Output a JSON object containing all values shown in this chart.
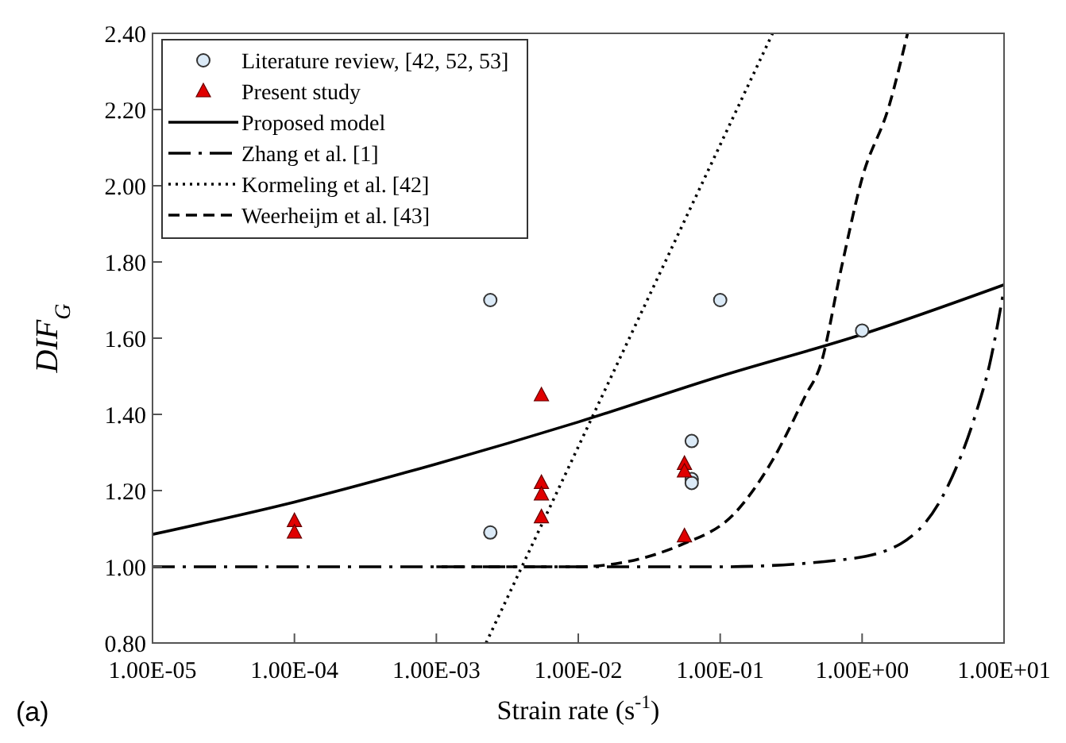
{
  "chart_data": {
    "type": "line",
    "xlabel": "Strain rate (s$^{-1}$)",
    "ylabel": "DIF$_{G}$",
    "annotations": [
      "(a)"
    ],
    "log": "x",
    "xlim": [
      1e-05,
      10
    ],
    "xticks": [
      {
        "value": 1e-05,
        "label": "1.00E-05"
      },
      {
        "value": 0.0001,
        "label": "1.00E-04"
      },
      {
        "value": 0.001,
        "label": "1.00E-03"
      },
      {
        "value": 0.01,
        "label": "1.00E-02"
      },
      {
        "value": 0.1,
        "label": "1.00E-01"
      },
      {
        "value": 1,
        "label": "1.00E+00"
      },
      {
        "value": 10,
        "label": "1.00E+01"
      }
    ],
    "ylim": [
      0.8,
      2.4
    ],
    "yticks": [
      {
        "value": 0.8,
        "label": "0.80"
      },
      {
        "value": 1.0,
        "label": "1.00"
      },
      {
        "value": 1.2,
        "label": "1.20"
      },
      {
        "value": 1.4,
        "label": "1.40"
      },
      {
        "value": 1.6,
        "label": "1.60"
      },
      {
        "value": 1.8,
        "label": "1.80"
      },
      {
        "value": 2.0,
        "label": "2.00"
      },
      {
        "value": 2.2,
        "label": "2.20"
      },
      {
        "value": 2.4,
        "label": "2.40"
      }
    ],
    "grid": false,
    "legend": "top left",
    "series": [
      {
        "name": "Literature review, [42, 52, 53]",
        "type": "scatter",
        "marker": "circle",
        "color": "#dbeaf7",
        "x": [
          0.0024,
          0.0024,
          0.1,
          1,
          0.063,
          0.063,
          0.063
        ],
        "values": [
          1.7,
          1.09,
          1.7,
          1.62,
          1.33,
          1.23,
          1.22
        ]
      },
      {
        "name": "Present study",
        "type": "scatter",
        "marker": "triangle",
        "color": "#e00000",
        "x": [
          0.0001,
          0.0001,
          0.0055,
          0.0055,
          0.0055,
          0.0055,
          0.056,
          0.056,
          0.056
        ],
        "values": [
          1.12,
          1.09,
          1.45,
          1.22,
          1.19,
          1.13,
          1.27,
          1.25,
          1.08
        ]
      },
      {
        "name": "Proposed model",
        "line_style": "solid",
        "color": "#000000",
        "x": [
          1e-05,
          0.0001,
          0.001,
          0.01,
          0.1,
          1,
          10
        ],
        "values": [
          1.085,
          1.17,
          1.27,
          1.38,
          1.5,
          1.61,
          1.74
        ]
      },
      {
        "name": "Zhang et al. [1]",
        "line_style": "dashdot",
        "color": "#000000",
        "x": [
          1e-05,
          0.001,
          0.1,
          0.78,
          1.86,
          4.0,
          6.3,
          7.9,
          10
        ],
        "values": [
          1.0,
          1.0,
          1.0,
          1.02,
          1.06,
          1.21,
          1.4,
          1.53,
          1.73
        ]
      },
      {
        "name": "Kormeling et al. [42]",
        "line_style": "dotted",
        "color": "#000000",
        "x": [
          0.00224,
          0.234
        ],
        "values": [
          0.8,
          2.4
        ]
      },
      {
        "name": "Weerheijm et al. [43]",
        "line_style": "dashed",
        "color": "#000000",
        "x": [
          0.001,
          0.0098,
          0.055,
          0.126,
          0.234,
          0.4,
          0.51,
          0.71,
          1.0,
          1.55,
          2.09
        ],
        "values": [
          1.0,
          1.0,
          1.06,
          1.14,
          1.28,
          1.45,
          1.53,
          1.78,
          2.02,
          2.21,
          2.4
        ]
      }
    ]
  }
}
